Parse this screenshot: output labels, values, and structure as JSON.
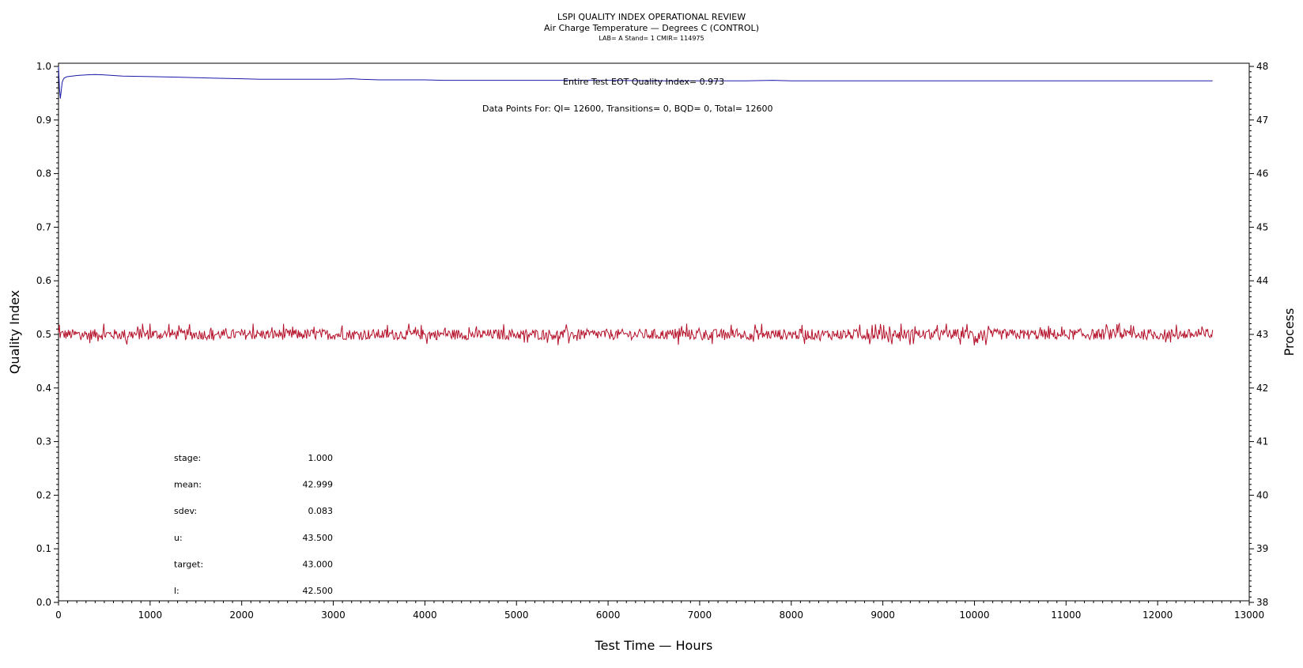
{
  "header": {
    "title": "LSPI QUALITY INDEX OPERATIONAL REVIEW",
    "subtitle": "Air Charge Temperature — Degrees C (CONTROL)",
    "sub2": "LAB= A Stand= 1 CMIR= 114975"
  },
  "annotations": {
    "qi_text": "Entire Test EOT Quality Index=   0.973",
    "points_text": "Data Points For: QI= 12600, Transitions=      0, BQD=      0, Total= 12600"
  },
  "stats": [
    {
      "label": "stage:",
      "value": "1.000"
    },
    {
      "label": "mean:",
      "value": "42.999"
    },
    {
      "label": "sdev:",
      "value": "0.083"
    },
    {
      "label": "u:",
      "value": "43.500"
    },
    {
      "label": "target:",
      "value": "43.000"
    },
    {
      "label": "l:",
      "value": "42.500"
    }
  ],
  "colors": {
    "quality_index": "#1a1aa8",
    "process": "#b5112a",
    "axis": "#000000"
  },
  "chart_data": {
    "type": "line",
    "title": "LSPI QUALITY INDEX OPERATIONAL REVIEW",
    "subtitle": "Air Charge Temperature — Degrees C (CONTROL)",
    "xlabel": "Test Time — Hours",
    "ylabel": "Quality Index",
    "y2label": "Process",
    "xlim": [
      0,
      13000
    ],
    "ylim": [
      0.0,
      1.0
    ],
    "y2lim": [
      38,
      48
    ],
    "x_ticks": [
      0,
      1000,
      2000,
      3000,
      4000,
      5000,
      6000,
      7000,
      8000,
      9000,
      10000,
      11000,
      12000,
      13000
    ],
    "y_ticks": [
      "0.0",
      "0.1",
      "0.2",
      "0.3",
      "0.4",
      "0.5",
      "0.6",
      "0.7",
      "0.8",
      "0.9",
      "1.0"
    ],
    "y2_ticks": [
      38,
      39,
      40,
      41,
      42,
      43,
      44,
      45,
      46,
      47,
      48
    ],
    "grid": false,
    "series": [
      {
        "axis": "left",
        "x": [
          0,
          10,
          20,
          30,
          40,
          50,
          60,
          80,
          100,
          150,
          200,
          300,
          400,
          500,
          600,
          700,
          1000,
          1300,
          1500,
          1700,
          2000,
          2200,
          2500,
          3000,
          3200,
          3300,
          3500,
          4000,
          4200,
          4500,
          5000,
          5500,
          6000,
          6500,
          7000,
          7500,
          7800,
          8000,
          9000,
          10000,
          11000,
          12000,
          12600
        ],
        "values": [
          1.0,
          0.96,
          0.94,
          0.955,
          0.97,
          0.975,
          0.978,
          0.98,
          0.981,
          0.982,
          0.983,
          0.984,
          0.985,
          0.984,
          0.983,
          0.982,
          0.981,
          0.98,
          0.979,
          0.978,
          0.977,
          0.976,
          0.976,
          0.976,
          0.977,
          0.976,
          0.975,
          0.975,
          0.974,
          0.974,
          0.974,
          0.974,
          0.974,
          0.973,
          0.973,
          0.973,
          0.974,
          0.973,
          0.973,
          0.973,
          0.973,
          0.973,
          0.973
        ]
      },
      {
        "axis": "right",
        "mean": 42.999,
        "sdev": 0.083,
        "x_range": [
          0,
          12600
        ],
        "min": 42.7,
        "max": 43.2
      }
    ]
  }
}
